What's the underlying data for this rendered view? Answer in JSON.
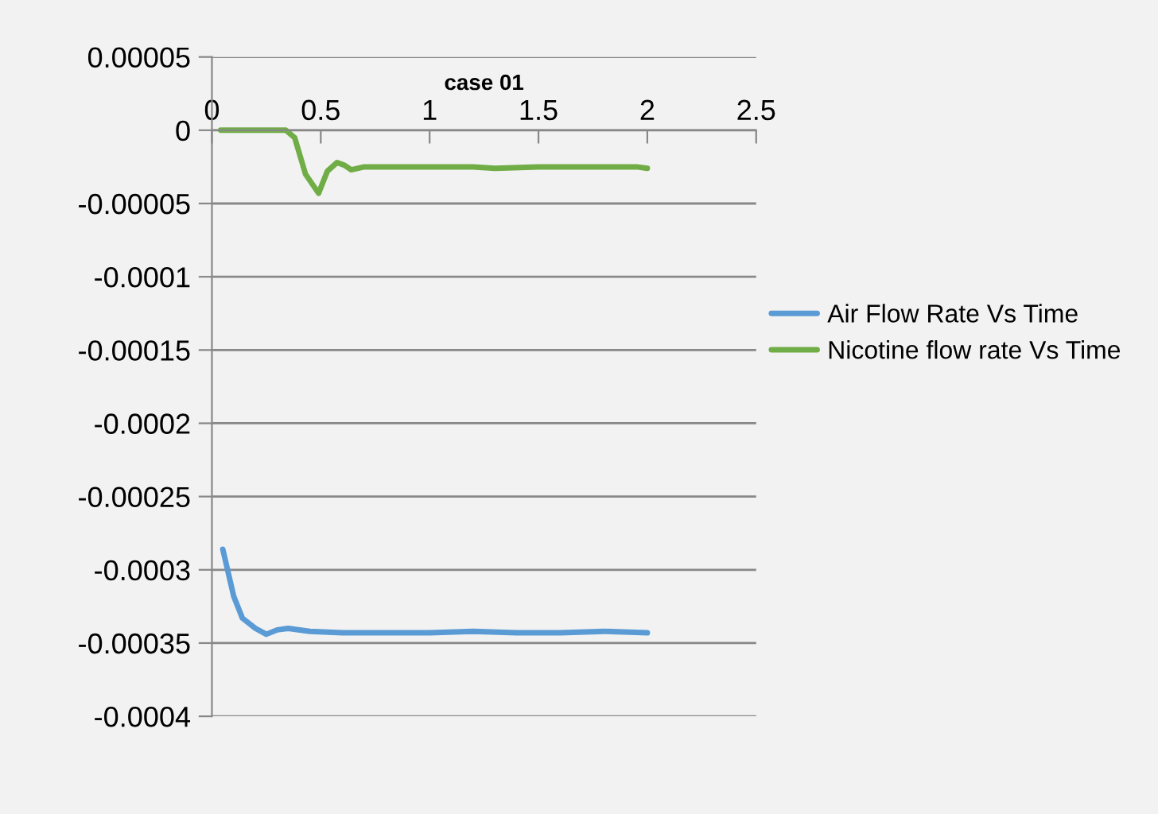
{
  "chart_data": {
    "type": "line",
    "title": "case 01",
    "series": [
      {
        "name": "Air Flow Rate Vs Time",
        "color": "#5b9bd5",
        "x": [
          0.05,
          0.1,
          0.14,
          0.2,
          0.25,
          0.3,
          0.35,
          0.45,
          0.6,
          0.8,
          1.0,
          1.2,
          1.4,
          1.6,
          1.8,
          2.0
        ],
        "values": [
          -0.000286,
          -0.000318,
          -0.000333,
          -0.00034,
          -0.000344,
          -0.000341,
          -0.00034,
          -0.000342,
          -0.000343,
          -0.000343,
          -0.000343,
          -0.000342,
          -0.000343,
          -0.000343,
          -0.000342,
          -0.000343
        ]
      },
      {
        "name": "Nicotine flow rate Vs Time",
        "color": "#70ad47",
        "x": [
          0.04,
          0.2,
          0.34,
          0.38,
          0.43,
          0.49,
          0.53,
          0.575,
          0.61,
          0.64,
          0.7,
          0.9,
          1.2,
          1.3,
          1.5,
          1.8,
          1.95,
          2.0
        ],
        "values": [
          0.0,
          0.0,
          0.0,
          -5e-06,
          -3e-05,
          -4.3e-05,
          -2.8e-05,
          -2.2e-05,
          -2.4e-05,
          -2.7e-05,
          -2.5e-05,
          -2.5e-05,
          -2.5e-05,
          -2.6e-05,
          -2.5e-05,
          -2.5e-05,
          -2.5e-05,
          -2.6e-05
        ]
      }
    ],
    "xlim": [
      0,
      2.5
    ],
    "xticks": [
      0,
      0.5,
      1,
      1.5,
      2,
      2.5
    ],
    "ylim": [
      -0.0004,
      5e-05
    ],
    "yticks": [
      {
        "value": 5e-05,
        "label": "0.00005"
      },
      0,
      {
        "value": -5e-05,
        "label": "-0.00005"
      },
      {
        "value": -0.0001,
        "label": "-0.0001"
      },
      {
        "value": -0.00015,
        "label": "-0.00015"
      },
      {
        "value": -0.0002,
        "label": "-0.0002"
      },
      {
        "value": -0.00025,
        "label": "-0.00025"
      },
      {
        "value": -0.0003,
        "label": "-0.0003"
      },
      {
        "value": -0.00035,
        "label": "-0.00035"
      },
      {
        "value": -0.0004,
        "label": "-0.0004"
      }
    ],
    "grid": "y",
    "legend": "right",
    "marker": "none",
    "line_style": "solid"
  }
}
